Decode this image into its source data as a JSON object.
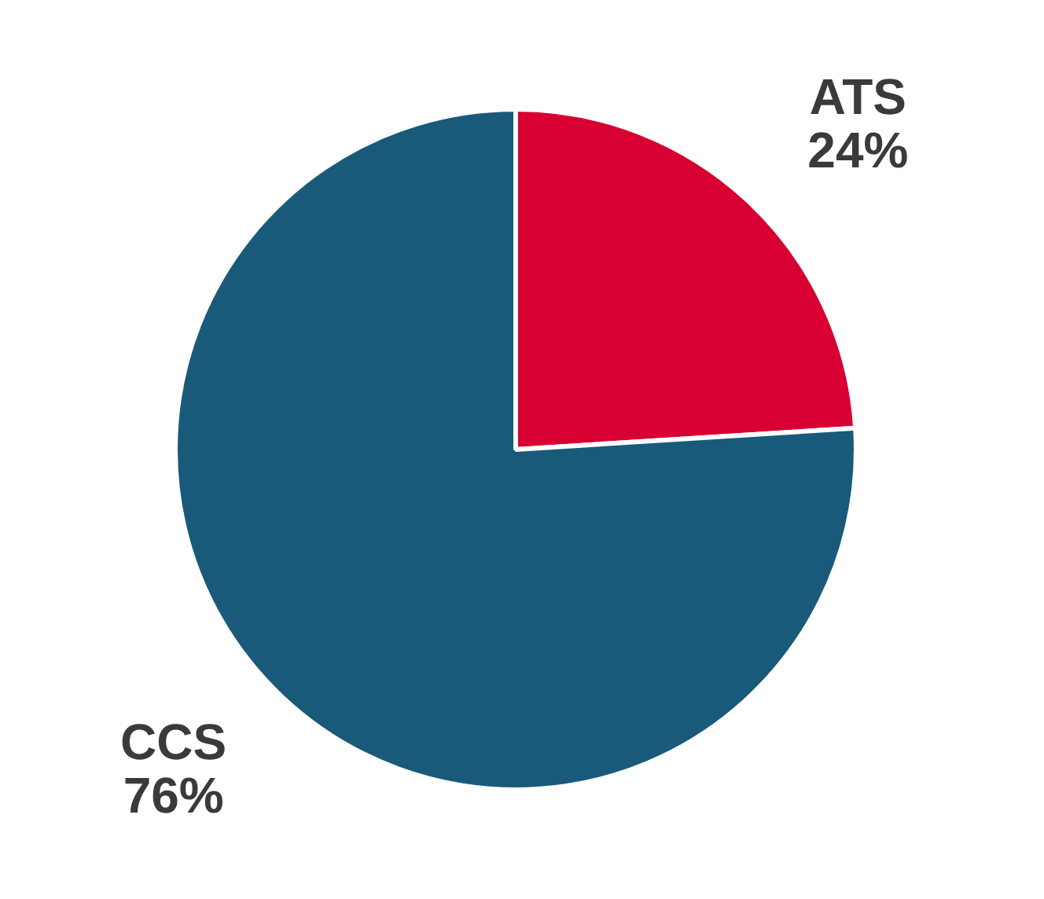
{
  "chart_data": {
    "type": "pie",
    "categories": [
      "ATS",
      "CCS"
    ],
    "values": [
      24,
      76
    ],
    "colors": [
      "#d80032",
      "#195a7a"
    ],
    "value_labels": [
      "24%",
      "76%"
    ],
    "legend": false
  }
}
